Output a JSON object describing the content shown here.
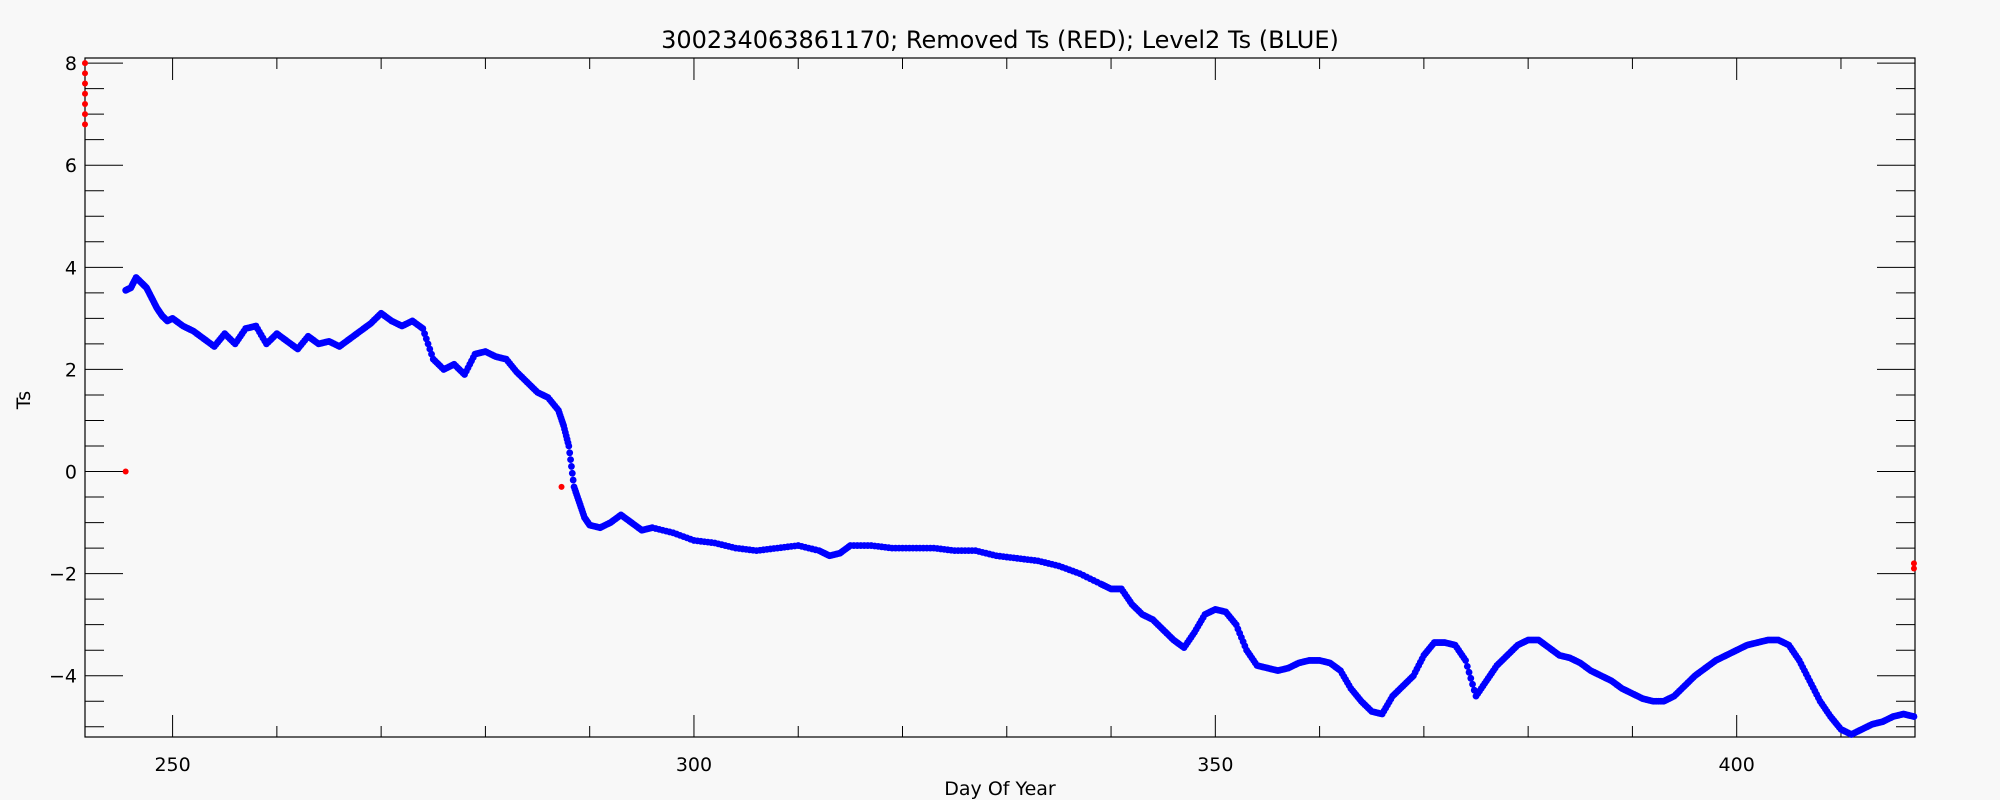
{
  "chart_data": {
    "type": "scatter",
    "title": "300234063861170; Removed Ts (RED); Level2 Ts (BLUE)",
    "xlabel": "Day Of Year",
    "ylabel": "Ts",
    "xlim": [
      241.6,
      417.1
    ],
    "ylim": [
      -5.2,
      8.1
    ],
    "x_ticks": [
      250,
      300,
      350,
      400
    ],
    "y_ticks": [
      -4,
      -2,
      0,
      2,
      4,
      6,
      8
    ],
    "x_minor_step": 10,
    "y_minor_step": 0.5,
    "grid": false,
    "colors": {
      "removed": "#ff0000",
      "level2": "#0000ff",
      "axes": "#000000",
      "background": "#f8f8f8"
    },
    "series": [
      {
        "name": "Removed Ts",
        "color": "#ff0000",
        "points": [
          [
            241.6,
            8.0
          ],
          [
            241.6,
            7.8
          ],
          [
            241.6,
            7.6
          ],
          [
            241.6,
            7.4
          ],
          [
            241.6,
            7.2
          ],
          [
            241.6,
            7.0
          ],
          [
            241.6,
            6.8
          ],
          [
            245.5,
            0.0
          ],
          [
            287.3,
            -0.3
          ],
          [
            417.0,
            -1.8
          ],
          [
            417.0,
            -1.9
          ]
        ]
      },
      {
        "name": "Level2 Ts",
        "color": "#0000ff",
        "points": [
          [
            245.5,
            3.55
          ],
          [
            246.0,
            3.6
          ],
          [
            246.5,
            3.8
          ],
          [
            247.0,
            3.7
          ],
          [
            247.5,
            3.6
          ],
          [
            248.0,
            3.4
          ],
          [
            248.5,
            3.2
          ],
          [
            249.0,
            3.05
          ],
          [
            249.5,
            2.95
          ],
          [
            250.0,
            3.0
          ],
          [
            251.0,
            2.85
          ],
          [
            252.0,
            2.75
          ],
          [
            253.0,
            2.6
          ],
          [
            254.0,
            2.45
          ],
          [
            255.0,
            2.7
          ],
          [
            256.0,
            2.5
          ],
          [
            257.0,
            2.8
          ],
          [
            258.0,
            2.85
          ],
          [
            259.0,
            2.5
          ],
          [
            260.0,
            2.7
          ],
          [
            261.0,
            2.55
          ],
          [
            262.0,
            2.4
          ],
          [
            263.0,
            2.65
          ],
          [
            264.0,
            2.5
          ],
          [
            265.0,
            2.55
          ],
          [
            266.0,
            2.45
          ],
          [
            267.0,
            2.6
          ],
          [
            268.0,
            2.75
          ],
          [
            269.0,
            2.9
          ],
          [
            270.0,
            3.1
          ],
          [
            271.0,
            2.95
          ],
          [
            272.0,
            2.85
          ],
          [
            273.0,
            2.95
          ],
          [
            274.0,
            2.8
          ],
          [
            275.0,
            2.2
          ],
          [
            276.0,
            2.0
          ],
          [
            277.0,
            2.1
          ],
          [
            278.0,
            1.9
          ],
          [
            279.0,
            2.3
          ],
          [
            280.0,
            2.35
          ],
          [
            281.0,
            2.25
          ],
          [
            282.0,
            2.2
          ],
          [
            283.0,
            1.95
          ],
          [
            284.0,
            1.75
          ],
          [
            285.0,
            1.55
          ],
          [
            286.0,
            1.45
          ],
          [
            287.0,
            1.2
          ],
          [
            287.5,
            0.9
          ],
          [
            288.0,
            0.5
          ],
          [
            288.5,
            -0.3
          ],
          [
            289.0,
            -0.6
          ],
          [
            289.5,
            -0.9
          ],
          [
            290.0,
            -1.05
          ],
          [
            291.0,
            -1.1
          ],
          [
            292.0,
            -1.0
          ],
          [
            293.0,
            -0.85
          ],
          [
            294.0,
            -1.0
          ],
          [
            295.0,
            -1.15
          ],
          [
            296.0,
            -1.1
          ],
          [
            298.0,
            -1.2
          ],
          [
            300.0,
            -1.35
          ],
          [
            302.0,
            -1.4
          ],
          [
            304.0,
            -1.5
          ],
          [
            306.0,
            -1.55
          ],
          [
            308.0,
            -1.5
          ],
          [
            310.0,
            -1.45
          ],
          [
            312.0,
            -1.55
          ],
          [
            313.0,
            -1.65
          ],
          [
            314.0,
            -1.6
          ],
          [
            315.0,
            -1.45
          ],
          [
            317.0,
            -1.45
          ],
          [
            319.0,
            -1.5
          ],
          [
            321.0,
            -1.5
          ],
          [
            323.0,
            -1.5
          ],
          [
            325.0,
            -1.55
          ],
          [
            327.0,
            -1.55
          ],
          [
            329.0,
            -1.65
          ],
          [
            331.0,
            -1.7
          ],
          [
            333.0,
            -1.75
          ],
          [
            335.0,
            -1.85
          ],
          [
            337.0,
            -2.0
          ],
          [
            339.0,
            -2.2
          ],
          [
            340.0,
            -2.3
          ],
          [
            341.0,
            -2.3
          ],
          [
            342.0,
            -2.6
          ],
          [
            343.0,
            -2.8
          ],
          [
            344.0,
            -2.9
          ],
          [
            345.0,
            -3.1
          ],
          [
            346.0,
            -3.3
          ],
          [
            347.0,
            -3.45
          ],
          [
            348.0,
            -3.15
          ],
          [
            349.0,
            -2.8
          ],
          [
            350.0,
            -2.7
          ],
          [
            351.0,
            -2.75
          ],
          [
            352.0,
            -3.0
          ],
          [
            353.0,
            -3.5
          ],
          [
            354.0,
            -3.8
          ],
          [
            355.0,
            -3.85
          ],
          [
            356.0,
            -3.9
          ],
          [
            357.0,
            -3.85
          ],
          [
            358.0,
            -3.75
          ],
          [
            359.0,
            -3.7
          ],
          [
            360.0,
            -3.7
          ],
          [
            361.0,
            -3.75
          ],
          [
            362.0,
            -3.9
          ],
          [
            363.0,
            -4.25
          ],
          [
            364.0,
            -4.5
          ],
          [
            365.0,
            -4.7
          ],
          [
            366.0,
            -4.75
          ],
          [
            367.0,
            -4.4
          ],
          [
            368.0,
            -4.2
          ],
          [
            369.0,
            -4.0
          ],
          [
            370.0,
            -3.6
          ],
          [
            371.0,
            -3.35
          ],
          [
            372.0,
            -3.35
          ],
          [
            373.0,
            -3.4
          ],
          [
            374.0,
            -3.7
          ],
          [
            375.0,
            -4.4
          ],
          [
            376.0,
            -4.1
          ],
          [
            377.0,
            -3.8
          ],
          [
            378.0,
            -3.6
          ],
          [
            379.0,
            -3.4
          ],
          [
            380.0,
            -3.3
          ],
          [
            381.0,
            -3.3
          ],
          [
            382.0,
            -3.45
          ],
          [
            383.0,
            -3.6
          ],
          [
            384.0,
            -3.65
          ],
          [
            385.0,
            -3.75
          ],
          [
            386.0,
            -3.9
          ],
          [
            387.0,
            -4.0
          ],
          [
            388.0,
            -4.1
          ],
          [
            389.0,
            -4.25
          ],
          [
            390.0,
            -4.35
          ],
          [
            391.0,
            -4.45
          ],
          [
            392.0,
            -4.5
          ],
          [
            393.0,
            -4.5
          ],
          [
            394.0,
            -4.4
          ],
          [
            395.0,
            -4.2
          ],
          [
            396.0,
            -4.0
          ],
          [
            397.0,
            -3.85
          ],
          [
            398.0,
            -3.7
          ],
          [
            399.0,
            -3.6
          ],
          [
            400.0,
            -3.5
          ],
          [
            401.0,
            -3.4
          ],
          [
            402.0,
            -3.35
          ],
          [
            403.0,
            -3.3
          ],
          [
            404.0,
            -3.3
          ],
          [
            405.0,
            -3.4
          ],
          [
            406.0,
            -3.7
          ],
          [
            407.0,
            -4.1
          ],
          [
            408.0,
            -4.5
          ],
          [
            409.0,
            -4.8
          ],
          [
            410.0,
            -5.05
          ],
          [
            411.0,
            -5.15
          ],
          [
            412.0,
            -5.05
          ],
          [
            413.0,
            -4.95
          ],
          [
            414.0,
            -4.9
          ],
          [
            415.0,
            -4.8
          ],
          [
            416.0,
            -4.75
          ],
          [
            417.0,
            -4.8
          ]
        ]
      }
    ]
  }
}
